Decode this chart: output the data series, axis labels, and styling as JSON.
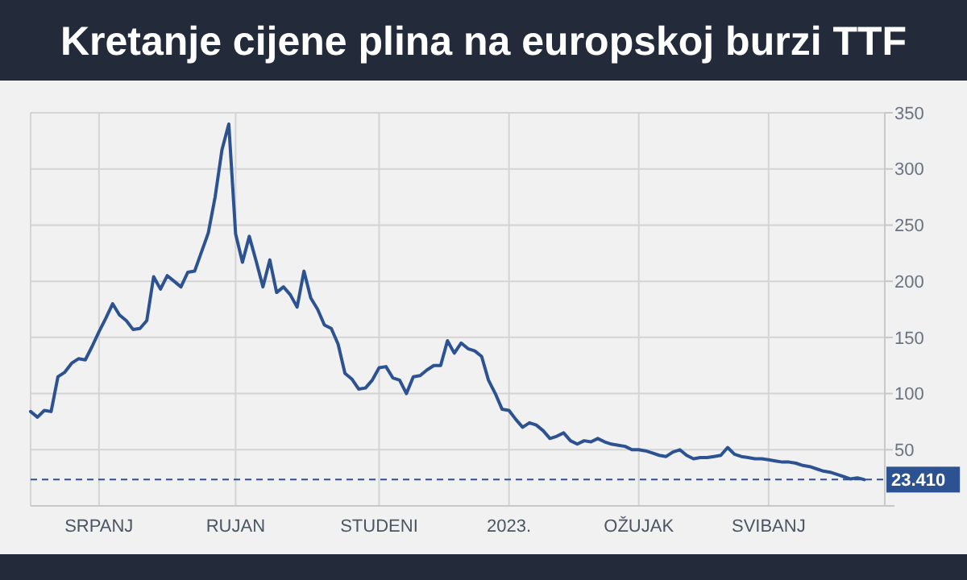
{
  "chart_data": {
    "type": "line",
    "title": "Kretanje cijene plina na europskoj burzi TTF",
    "categories": [
      null,
      null,
      null,
      null,
      null,
      null,
      null,
      null,
      null,
      null,
      "SRPANJ",
      null,
      null,
      null,
      null,
      null,
      null,
      null,
      null,
      null,
      null,
      null,
      null,
      null,
      null,
      null,
      null,
      null,
      null,
      null,
      "RUJAN",
      null,
      null,
      null,
      null,
      null,
      null,
      null,
      null,
      null,
      null,
      null,
      null,
      null,
      null,
      null,
      null,
      null,
      null,
      null,
      null,
      "STUDENI",
      null,
      null,
      null,
      null,
      null,
      null,
      null,
      null,
      null,
      null,
      null,
      null,
      null,
      null,
      null,
      null,
      null,
      null,
      "2023.",
      null,
      null,
      null,
      null,
      null,
      null,
      null,
      null,
      null,
      null,
      null,
      null,
      null,
      null,
      null,
      null,
      null,
      null,
      "OŽUJAK",
      null,
      null,
      null,
      null,
      null,
      null,
      null,
      null,
      null,
      null,
      null,
      null,
      null,
      null,
      null,
      null,
      null,
      null,
      "SVIBANJ",
      null,
      null,
      null,
      null,
      null,
      null,
      null,
      null,
      null,
      null,
      null,
      null,
      null,
      null,
      null,
      null,
      null
    ],
    "series": [
      {
        "color": "#2c5292",
        "values": [
          84,
          79,
          85,
          84,
          115,
          119,
          127,
          131,
          130,
          142,
          155,
          167,
          180,
          170,
          165,
          157,
          158,
          165,
          204,
          193,
          205,
          200,
          195,
          208,
          209,
          226,
          243,
          275,
          317,
          340,
          242,
          217,
          240,
          218,
          195,
          219,
          190,
          195,
          188,
          177,
          209,
          185,
          175,
          161,
          158,
          144,
          118,
          113,
          104,
          105,
          112,
          123,
          124,
          114,
          112,
          100,
          115,
          116,
          121,
          125,
          125,
          147,
          136,
          145,
          140,
          138,
          133,
          112,
          100,
          86,
          85,
          77,
          70,
          74,
          72,
          67,
          60,
          62,
          65,
          58,
          55,
          58,
          57,
          60,
          57,
          55,
          54,
          53,
          50,
          50,
          49,
          47,
          45,
          44,
          48,
          50,
          45,
          42,
          43,
          43,
          44,
          45,
          52,
          46,
          44,
          43,
          42,
          42,
          41,
          40,
          39,
          39,
          38,
          36,
          35,
          33,
          31,
          30,
          28,
          26,
          24,
          25,
          23.41,
          null,
          null,
          null
        ]
      }
    ],
    "ylim": [
      0,
      350
    ],
    "yticks": [
      50,
      100,
      150,
      200,
      250,
      300,
      350
    ],
    "grid": true,
    "marker": "none",
    "line_style": "solid",
    "ref_lines": [
      {
        "axis": "y",
        "value": 23.41,
        "label": "23.410",
        "color": "#2c5292",
        "line_style": "dashed"
      }
    ]
  }
}
